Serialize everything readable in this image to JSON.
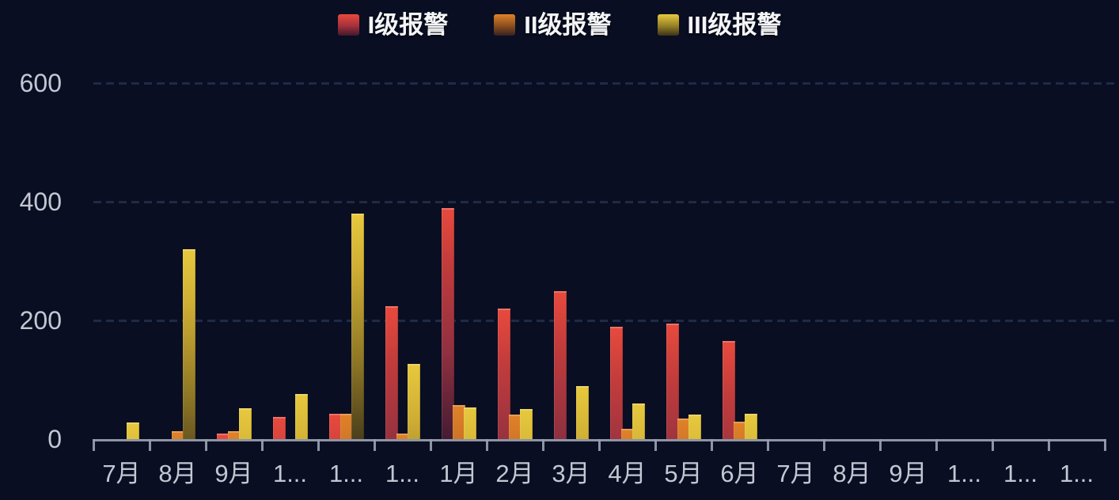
{
  "legend": {
    "items": [
      {
        "label": "I级报警",
        "color": "#e84a3d"
      },
      {
        "label": "II级报警",
        "color": "#e08229"
      },
      {
        "label": "III级报警",
        "color": "#e7c93e"
      }
    ]
  },
  "y_axis": {
    "tick_labels": [
      "600",
      "400",
      "200",
      "0"
    ]
  },
  "x_axis": {
    "tick_labels_display": [
      "7月",
      "8月",
      "9月",
      "1...",
      "1...",
      "1...",
      "1月",
      "2月",
      "3月",
      "4月",
      "5月",
      "6月",
      "7月",
      "8月",
      "9月",
      "1...",
      "1...",
      "1..."
    ]
  },
  "chart_data": {
    "type": "bar",
    "title": "",
    "categories_display": [
      "7月",
      "8月",
      "9月",
      "1...",
      "1...",
      "1...",
      "1月",
      "2月",
      "3月",
      "4月",
      "5月",
      "6月",
      "7月",
      "8月",
      "9月",
      "1...",
      "1...",
      "1..."
    ],
    "series": [
      {
        "name": "I级报警",
        "color": "#e84a3d",
        "values": [
          0,
          0,
          10,
          38,
          43,
          224,
          390,
          220,
          250,
          190,
          195,
          165,
          0,
          0,
          0,
          0,
          0,
          0
        ]
      },
      {
        "name": "II级报警",
        "color": "#e08229",
        "values": [
          0,
          14,
          14,
          0,
          43,
          10,
          58,
          42,
          0,
          18,
          35,
          30,
          0,
          0,
          0,
          0,
          0,
          0
        ]
      },
      {
        "name": "III级报警",
        "color": "#e7c93e",
        "values": [
          28,
          320,
          52,
          76,
          380,
          127,
          54,
          51,
          90,
          60,
          42,
          43,
          0,
          0,
          0,
          0,
          0,
          0
        ]
      }
    ],
    "ylim": [
      0,
      600
    ],
    "y_ticks": [
      0,
      200,
      400,
      600
    ],
    "grid": {
      "horizontal": true,
      "style": "dashed",
      "color": "#1e2b47"
    },
    "legend_position": "top-center",
    "background_color": "#0a0e22",
    "bar_style": "vertical gradient fading to dark at bottom"
  }
}
